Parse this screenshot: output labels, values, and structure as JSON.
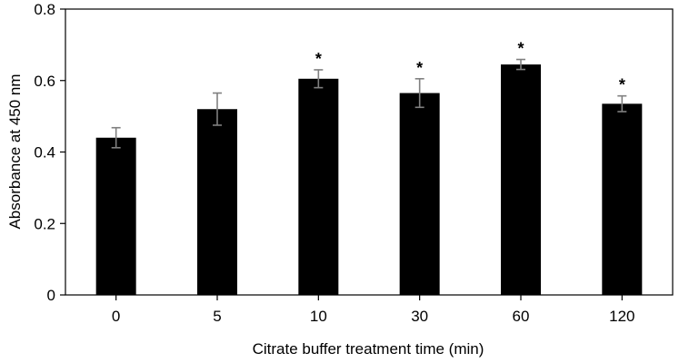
{
  "chart_data": {
    "type": "bar",
    "categories": [
      "0",
      "5",
      "10",
      "30",
      "60",
      "120"
    ],
    "values": [
      0.44,
      0.52,
      0.605,
      0.565,
      0.645,
      0.535
    ],
    "errors": [
      0.028,
      0.045,
      0.025,
      0.04,
      0.014,
      0.022
    ],
    "significance": [
      "",
      "",
      "*",
      "*",
      "*",
      "*"
    ],
    "xlabel": "Citrate buffer treatment time (min)",
    "ylabel": "Absorbance at 450 nm",
    "ylim": [
      0,
      0.8
    ],
    "yticks": [
      "0",
      "0.2",
      "0.4",
      "0.6",
      "0.8"
    ],
    "bar_color": "#000000",
    "error_color": "#808080",
    "grid": false,
    "legend": "none"
  }
}
